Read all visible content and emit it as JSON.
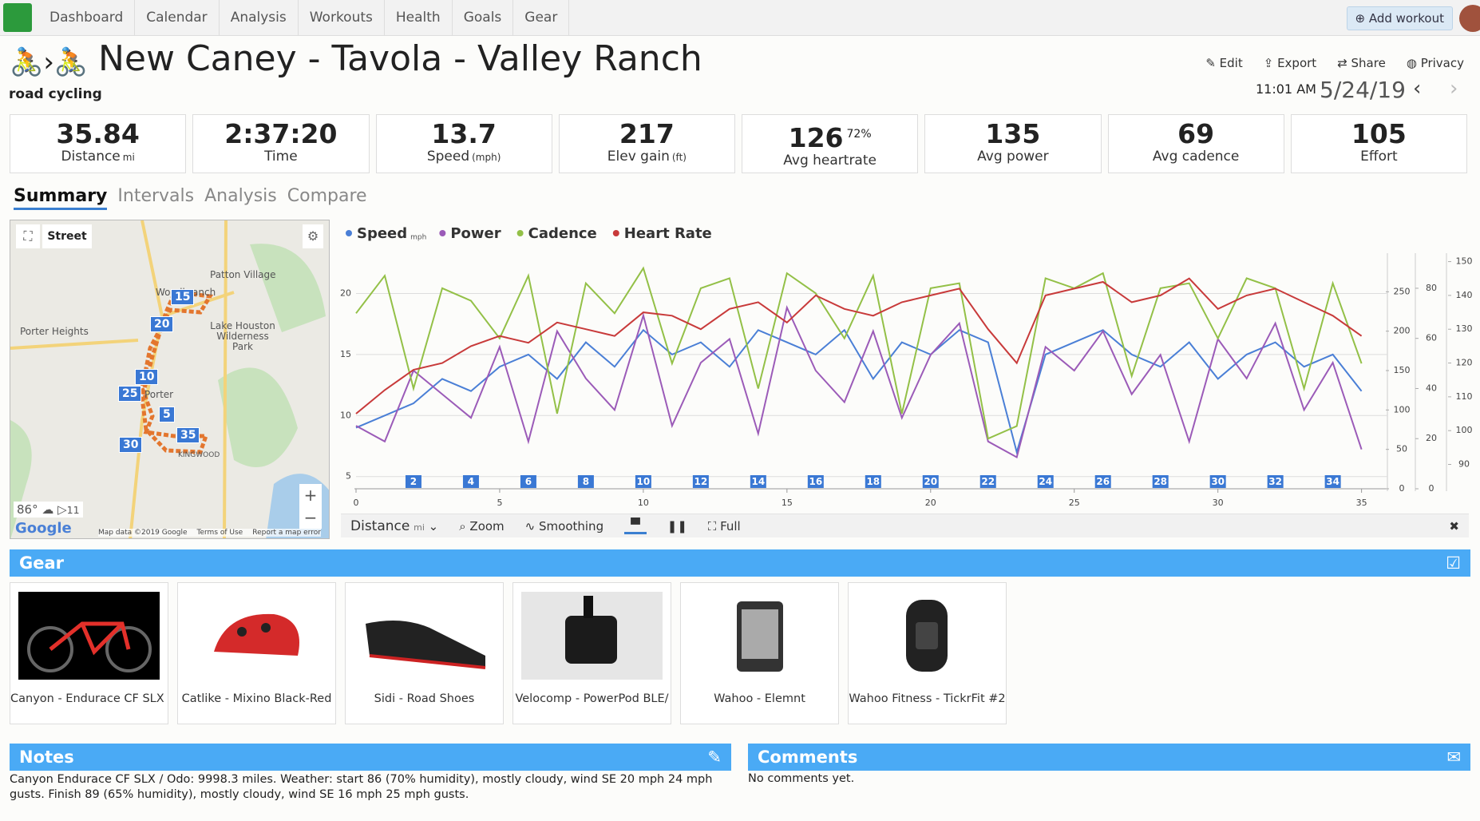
{
  "nav": {
    "links": [
      "Dashboard",
      "Calendar",
      "Analysis",
      "Workouts",
      "Health",
      "Goals",
      "Gear"
    ],
    "add_workout": "Add workout"
  },
  "header": {
    "title": "New Caney - Tavola - Valley Ranch",
    "subtitle": "road cycling",
    "actions": [
      "Edit",
      "Export",
      "Share",
      "Privacy"
    ],
    "time": "11:01 AM",
    "date": "5/24/19"
  },
  "stats": [
    {
      "value": 35.84,
      "label": "Distance",
      "unit": "mi"
    },
    {
      "value": "2:37:20",
      "label": "Time"
    },
    {
      "value": 13.7,
      "label": "Speed",
      "unit": "(mph)"
    },
    {
      "value": 217,
      "label": "Elev gain",
      "unit": "(ft)"
    },
    {
      "value": 126,
      "extra": "72%",
      "label": "Avg heartrate"
    },
    {
      "value": 135,
      "label": "Avg power"
    },
    {
      "value": 69,
      "label": "Avg cadence"
    },
    {
      "value": 105,
      "label": "Effort"
    }
  ],
  "tabs": [
    "Summary",
    "Intervals",
    "Analysis",
    "Compare"
  ],
  "map": {
    "mode": "Street",
    "labels": [
      "Patton Village",
      "Woodbranch",
      "Porter Heights",
      "Lake Houston Wilderness Park",
      "Porter",
      "KINGWOOD"
    ],
    "markers": [
      15,
      20,
      10,
      25,
      5,
      35,
      30
    ],
    "temp": "86°",
    "wind": "11",
    "attribution": "Map data ©2019 Google",
    "terms": "Terms of Use",
    "report": "Report a map error",
    "logo": "Google"
  },
  "chart_data": {
    "type": "line",
    "x": [
      0,
      1,
      2,
      3,
      4,
      5,
      6,
      7,
      8,
      9,
      10,
      11,
      12,
      13,
      14,
      15,
      16,
      17,
      18,
      19,
      20,
      21,
      22,
      23,
      24,
      25,
      26,
      27,
      28,
      29,
      30,
      31,
      32,
      33,
      34,
      35
    ],
    "series": [
      {
        "name": "Speed",
        "unit": "mph",
        "color": "#4a7fd6",
        "axis": "y",
        "values": [
          9,
          10,
          11,
          13,
          12,
          14,
          15,
          13,
          16,
          14,
          17,
          15,
          16,
          14,
          17,
          16,
          15,
          17,
          13,
          16,
          15,
          17,
          16,
          7,
          15,
          16,
          17,
          15,
          14,
          16,
          13,
          15,
          16,
          14,
          15,
          12
        ]
      },
      {
        "name": "Power",
        "color": "#9b5bb8",
        "axis": "y2",
        "values": [
          80,
          60,
          150,
          120,
          90,
          180,
          60,
          200,
          140,
          100,
          220,
          80,
          160,
          190,
          70,
          230,
          150,
          110,
          200,
          90,
          170,
          210,
          60,
          40,
          180,
          150,
          200,
          120,
          170,
          60,
          190,
          140,
          210,
          100,
          160,
          50
        ]
      },
      {
        "name": "Cadence",
        "color": "#93c047",
        "axis": "y3",
        "values": [
          70,
          85,
          40,
          80,
          75,
          60,
          85,
          30,
          82,
          70,
          88,
          50,
          80,
          84,
          40,
          86,
          78,
          60,
          85,
          30,
          80,
          82,
          20,
          25,
          84,
          80,
          86,
          45,
          80,
          82,
          60,
          84,
          80,
          40,
          82,
          50
        ]
      },
      {
        "name": "Heart Rate",
        "color": "#c83a3a",
        "axis": "y4",
        "values": [
          105,
          112,
          118,
          120,
          125,
          128,
          126,
          132,
          130,
          128,
          135,
          134,
          130,
          136,
          138,
          132,
          140,
          136,
          134,
          138,
          140,
          142,
          130,
          120,
          140,
          142,
          144,
          138,
          140,
          145,
          136,
          140,
          142,
          138,
          134,
          128
        ]
      }
    ],
    "xlim": [
      0,
      35.9
    ],
    "xticks": [
      0,
      5,
      10,
      15,
      20,
      25,
      30,
      35
    ],
    "ylim": [
      4,
      23.3
    ],
    "yticks": [
      5,
      10,
      15,
      20
    ],
    "y2lim": [
      0,
      299
    ],
    "y2ticks": [
      0,
      50,
      100,
      150,
      200,
      250
    ],
    "y3lim": [
      0,
      94
    ],
    "y3ticks": [
      0,
      20,
      40,
      60,
      80
    ],
    "y4lim": [
      82.8,
      152.5
    ],
    "y4ticks": [
      90,
      100,
      110,
      120,
      130,
      140,
      150
    ],
    "markers": [
      2,
      4,
      6,
      8,
      10,
      12,
      14,
      16,
      18,
      20,
      22,
      24,
      26,
      28,
      30,
      32,
      34
    ],
    "grid": true
  },
  "toolbar": {
    "distance": "Distance",
    "unit": "mi",
    "zoom": "Zoom",
    "smoothing": "Smoothing",
    "full": "Full"
  },
  "gear": {
    "title": "Gear",
    "items": [
      "Canyon - Endurace CF SLX I",
      "Catlike - Mixino Black-Red",
      "Sidi - Road Shoes",
      "Velocomp - PowerPod BLE/",
      "Wahoo - Elemnt",
      "Wahoo Fitness - TickrFit #2"
    ]
  },
  "notes": {
    "title": "Notes",
    "text": "Canyon Endurace CF SLX / Odo: 9998.3 miles. Weather: start 86 (70% humidity), mostly cloudy, wind SE 20 mph 24 mph gusts. Finish 89 (65% humidity), mostly cloudy, wind SE 16 mph 25 mph gusts."
  },
  "comments": {
    "title": "Comments",
    "text": "No comments yet."
  }
}
